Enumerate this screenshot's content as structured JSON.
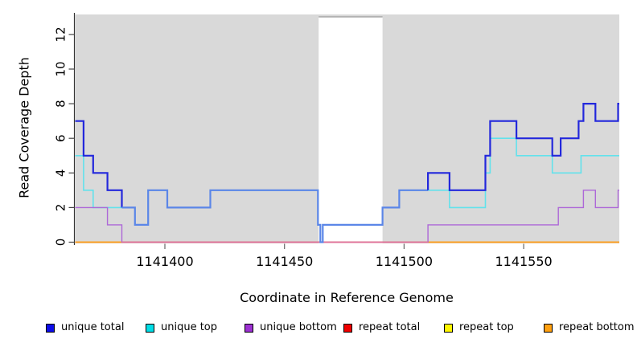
{
  "chart_data": {
    "type": "line",
    "subtype": "step-coverage",
    "title": "",
    "xlabel": "Coordinate in Reference Genome",
    "ylabel": "Read Coverage Depth",
    "xlim": [
      1141362.5,
      1141590
    ],
    "ylim": [
      0,
      13.3
    ],
    "x_ticks": [
      1141400,
      1141450,
      1141500,
      1141550
    ],
    "y_ticks": [
      0,
      2,
      4,
      6,
      8,
      10,
      12
    ],
    "grid": false,
    "legend_position": "bottom",
    "plot_background": "#d9d9d9",
    "uncovered_region": {
      "from": 1141464.3,
      "to": 1141491,
      "fill": "#ffffff",
      "top_edge_color": "#9b9b9b"
    },
    "zero_line_blend": {
      "from": 1141382,
      "to": 1141510,
      "value": 0,
      "color": "#e2709e"
    },
    "series": [
      {
        "name": "repeat total",
        "width": 1.4,
        "runs": [
          {
            "color": "#e32222",
            "points": [
              [
                1141362.5,
                0
              ],
              [
                1141590,
                0
              ]
            ]
          }
        ]
      },
      {
        "name": "repeat top",
        "width": 1.4,
        "runs": [
          {
            "color": "#f2e720",
            "points": [
              [
                1141362.5,
                0
              ],
              [
                1141590,
                0
              ]
            ]
          }
        ]
      },
      {
        "name": "repeat bottom",
        "width": 1.7,
        "runs": [
          {
            "color": "#ff9f1f",
            "points": [
              [
                1141362.5,
                0
              ],
              [
                1141590,
                0
              ]
            ]
          }
        ]
      },
      {
        "name": "unique top",
        "width": 1.6,
        "runs": [
          {
            "color": "#62e2ec",
            "points": [
              [
                1141362.5,
                5
              ],
              [
                1141366,
                3
              ],
              [
                1141370,
                2
              ],
              [
                1141387.5,
                1
              ],
              [
                1141393,
                3
              ],
              [
                1141401,
                2
              ],
              [
                1141419,
                3
              ],
              [
                1141464,
                1
              ],
              [
                1141465,
                0
              ],
              [
                1141466,
                1
              ],
              [
                1141491,
                2
              ],
              [
                1141498,
                3
              ],
              [
                1141519,
                2
              ],
              [
                1141534,
                4
              ],
              [
                1141536,
                6
              ],
              [
                1141547,
                5
              ],
              [
                1141562,
                4
              ],
              [
                1141574,
                5
              ],
              [
                1141590,
                5
              ]
            ]
          }
        ]
      },
      {
        "name": "unique bottom",
        "width": 1.4,
        "runs": [
          {
            "color": "#ad68d8",
            "points": [
              [
                1141362.5,
                2
              ],
              [
                1141376,
                1
              ],
              [
                1141382,
                0
              ],
              [
                1141510,
                1
              ],
              [
                1141564.5,
                2
              ],
              [
                1141575,
                3
              ],
              [
                1141580,
                2
              ],
              [
                1141589.5,
                3
              ],
              [
                1141590,
                3
              ]
            ]
          }
        ]
      },
      {
        "name": "unique total",
        "width": 2.2,
        "runs": [
          {
            "color": "#2328dc",
            "points": [
              [
                1141362.5,
                7
              ],
              [
                1141366,
                5
              ],
              [
                1141370,
                4
              ],
              [
                1141376,
                3
              ],
              [
                1141382,
                2
              ]
            ]
          },
          {
            "color": "#5b86e8",
            "points": [
              [
                1141382,
                2
              ],
              [
                1141387.5,
                1
              ],
              [
                1141393,
                3
              ],
              [
                1141401,
                2
              ],
              [
                1141419,
                3
              ],
              [
                1141464,
                1
              ],
              [
                1141465,
                0
              ],
              [
                1141466,
                1
              ],
              [
                1141491,
                2
              ],
              [
                1141498,
                3
              ],
              [
                1141510,
                3
              ]
            ]
          },
          {
            "color": "#2328dc",
            "points": [
              [
                1141510,
                3
              ],
              [
                1141510,
                4
              ],
              [
                1141519,
                3
              ],
              [
                1141534,
                5
              ],
              [
                1141536,
                7
              ],
              [
                1141547,
                6
              ],
              [
                1141562,
                5
              ],
              [
                1141565.5,
                6
              ],
              [
                1141573,
                7
              ],
              [
                1141575,
                8
              ],
              [
                1141580,
                7
              ],
              [
                1141589.5,
                8
              ],
              [
                1141590,
                8
              ]
            ]
          }
        ]
      }
    ],
    "legend": [
      {
        "label": "unique total",
        "color": "#0d0de8"
      },
      {
        "label": "unique top",
        "color": "#00dde6"
      },
      {
        "label": "unique bottom",
        "color": "#9d31d2"
      },
      {
        "label": "repeat total",
        "color": "#f00000"
      },
      {
        "label": "repeat top",
        "color": "#fff600"
      },
      {
        "label": "repeat bottom",
        "color": "#ffa010"
      }
    ]
  }
}
